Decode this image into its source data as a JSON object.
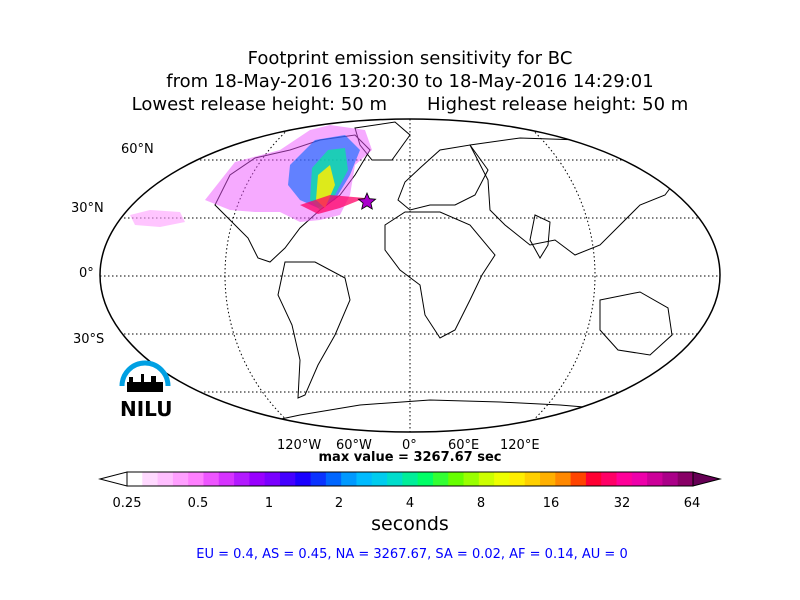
{
  "title": {
    "line1": "Footprint emission sensitivity for BC",
    "line2": "from 18-May-2016 13:20:30 to 18-May-2016 14:29:01",
    "line3": "Lowest release height: 50 m       Highest release height: 50 m"
  },
  "map": {
    "projection": "Robinson",
    "lat_labels": [
      "60°N",
      "30°N",
      "0°",
      "30°S"
    ],
    "lon_labels": [
      "120°W",
      "60°W",
      "0°",
      "60°E",
      "120°E"
    ],
    "max_value_text": "max value = 3267.67 sec"
  },
  "logo": {
    "text": "NILU",
    "color": "#00a0e3"
  },
  "colorbar": {
    "tick_labels": [
      "0.25",
      "0.5",
      "1",
      "2",
      "4",
      "8",
      "16",
      "32",
      "64"
    ],
    "unit_label": "seconds",
    "colors": [
      "#ffffff",
      "#ffd9ff",
      "#ffbfff",
      "#ff9fff",
      "#ff7fff",
      "#ee55ff",
      "#d633ff",
      "#b31aff",
      "#9900ff",
      "#7a00ff",
      "#4400ff",
      "#1a00ff",
      "#0a33ff",
      "#0066ff",
      "#0099ff",
      "#00bbff",
      "#00ccee",
      "#00ddcc",
      "#00ee99",
      "#00ff66",
      "#33ff33",
      "#66ff00",
      "#99ff00",
      "#ccff00",
      "#eeff00",
      "#ffee00",
      "#ffd000",
      "#ffb000",
      "#ff8800",
      "#ff4400",
      "#ff0033",
      "#ff0066",
      "#ff0099",
      "#ee00aa",
      "#cc0099",
      "#aa0088",
      "#880066"
    ]
  },
  "stats": "EU = 0.4,  AS = 0.45,  NA = 3267.67,  SA = 0.02,  AF = 0.14,  AU = 0"
}
